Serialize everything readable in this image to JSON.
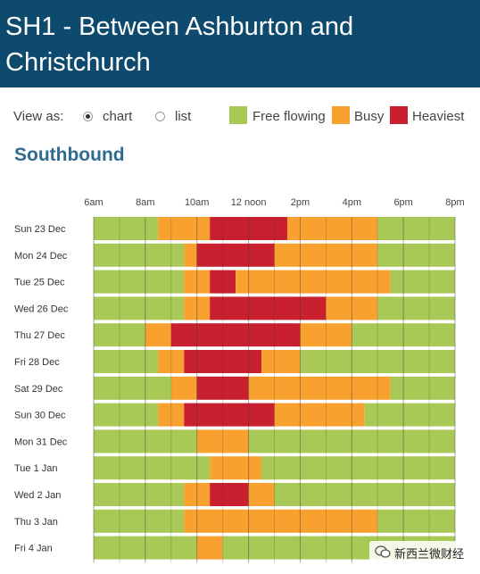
{
  "header": {
    "title": "SH1 - Between Ashburton and Christchurch"
  },
  "view_toggle": {
    "label": "View as:",
    "options": [
      {
        "label": "chart",
        "selected": true
      },
      {
        "label": "list",
        "selected": false
      }
    ]
  },
  "legend": [
    {
      "label": "Free flowing",
      "color": "#a8c956"
    },
    {
      "label": "Busy",
      "color": "#f9a12e"
    },
    {
      "label": "Heaviest",
      "color": "#c8202e"
    }
  ],
  "section": {
    "title": "Southbound"
  },
  "watermark": {
    "text": "新西兰微财经"
  },
  "chart_data": {
    "type": "heatmap",
    "x_unit": "hour of day",
    "xlim": [
      6,
      20
    ],
    "x_ticks": [
      {
        "label": "6am",
        "hour": 6
      },
      {
        "label": "8am",
        "hour": 8
      },
      {
        "label": "10am",
        "hour": 10
      },
      {
        "label": "12 noon",
        "hour": 12
      },
      {
        "label": "2pm",
        "hour": 14
      },
      {
        "label": "4pm",
        "hour": 16
      },
      {
        "label": "6pm",
        "hour": 18
      },
      {
        "label": "8pm",
        "hour": 20
      }
    ],
    "categories": [
      "Free flowing",
      "Busy",
      "Heaviest"
    ],
    "rows": [
      {
        "label": "Sun 23 Dec",
        "segments": [
          [
            6,
            8.5,
            "Free flowing"
          ],
          [
            8.5,
            10.5,
            "Busy"
          ],
          [
            10.5,
            13.5,
            "Heaviest"
          ],
          [
            13.5,
            17,
            "Busy"
          ],
          [
            17,
            20,
            "Free flowing"
          ]
        ]
      },
      {
        "label": "Mon 24 Dec",
        "segments": [
          [
            6,
            9.5,
            "Free flowing"
          ],
          [
            9.5,
            10,
            "Busy"
          ],
          [
            10,
            13,
            "Heaviest"
          ],
          [
            13,
            17,
            "Busy"
          ],
          [
            17,
            20,
            "Free flowing"
          ]
        ]
      },
      {
        "label": "Tue 25 Dec",
        "segments": [
          [
            6,
            9.5,
            "Free flowing"
          ],
          [
            9.5,
            10.5,
            "Busy"
          ],
          [
            10.5,
            11.5,
            "Heaviest"
          ],
          [
            11.5,
            17.5,
            "Busy"
          ],
          [
            17.5,
            20,
            "Free flowing"
          ]
        ]
      },
      {
        "label": "Wed 26 Dec",
        "segments": [
          [
            6,
            9.5,
            "Free flowing"
          ],
          [
            9.5,
            10.5,
            "Busy"
          ],
          [
            10.5,
            15,
            "Heaviest"
          ],
          [
            15,
            17,
            "Busy"
          ],
          [
            17,
            20,
            "Free flowing"
          ]
        ]
      },
      {
        "label": "Thu 27 Dec",
        "segments": [
          [
            6,
            8,
            "Free flowing"
          ],
          [
            8,
            9,
            "Busy"
          ],
          [
            9,
            14,
            "Heaviest"
          ],
          [
            14,
            16,
            "Busy"
          ],
          [
            16,
            20,
            "Free flowing"
          ]
        ]
      },
      {
        "label": "Fri 28 Dec",
        "segments": [
          [
            6,
            8.5,
            "Free flowing"
          ],
          [
            8.5,
            9.5,
            "Busy"
          ],
          [
            9.5,
            12.5,
            "Heaviest"
          ],
          [
            12.5,
            14,
            "Busy"
          ],
          [
            14,
            20,
            "Free flowing"
          ]
        ]
      },
      {
        "label": "Sat 29 Dec",
        "segments": [
          [
            6,
            9,
            "Free flowing"
          ],
          [
            9,
            10,
            "Busy"
          ],
          [
            10,
            12,
            "Heaviest"
          ],
          [
            12,
            17.5,
            "Busy"
          ],
          [
            17.5,
            20,
            "Free flowing"
          ]
        ]
      },
      {
        "label": "Sun 30 Dec",
        "segments": [
          [
            6,
            8.5,
            "Free flowing"
          ],
          [
            8.5,
            9.5,
            "Busy"
          ],
          [
            9.5,
            13,
            "Heaviest"
          ],
          [
            13,
            16.5,
            "Busy"
          ],
          [
            16.5,
            20,
            "Free flowing"
          ]
        ]
      },
      {
        "label": "Mon 31 Dec",
        "segments": [
          [
            6,
            10,
            "Free flowing"
          ],
          [
            10,
            12,
            "Busy"
          ],
          [
            12,
            20,
            "Free flowing"
          ]
        ]
      },
      {
        "label": "Tue 1 Jan",
        "segments": [
          [
            6,
            10.5,
            "Free flowing"
          ],
          [
            10.5,
            12.5,
            "Busy"
          ],
          [
            12.5,
            20,
            "Free flowing"
          ]
        ]
      },
      {
        "label": "Wed 2 Jan",
        "segments": [
          [
            6,
            9.5,
            "Free flowing"
          ],
          [
            9.5,
            10.5,
            "Busy"
          ],
          [
            10.5,
            12,
            "Heaviest"
          ],
          [
            12,
            13,
            "Busy"
          ],
          [
            13,
            20,
            "Free flowing"
          ]
        ]
      },
      {
        "label": "Thu 3 Jan",
        "segments": [
          [
            6,
            9.5,
            "Free flowing"
          ],
          [
            9.5,
            17,
            "Busy"
          ],
          [
            17,
            20,
            "Free flowing"
          ]
        ]
      },
      {
        "label": "Fri 4 Jan",
        "segments": [
          [
            6,
            10,
            "Free flowing"
          ],
          [
            10,
            11,
            "Busy"
          ],
          [
            11,
            20,
            "Free flowing"
          ]
        ]
      }
    ],
    "grid": true,
    "legend_position": "top-right"
  }
}
